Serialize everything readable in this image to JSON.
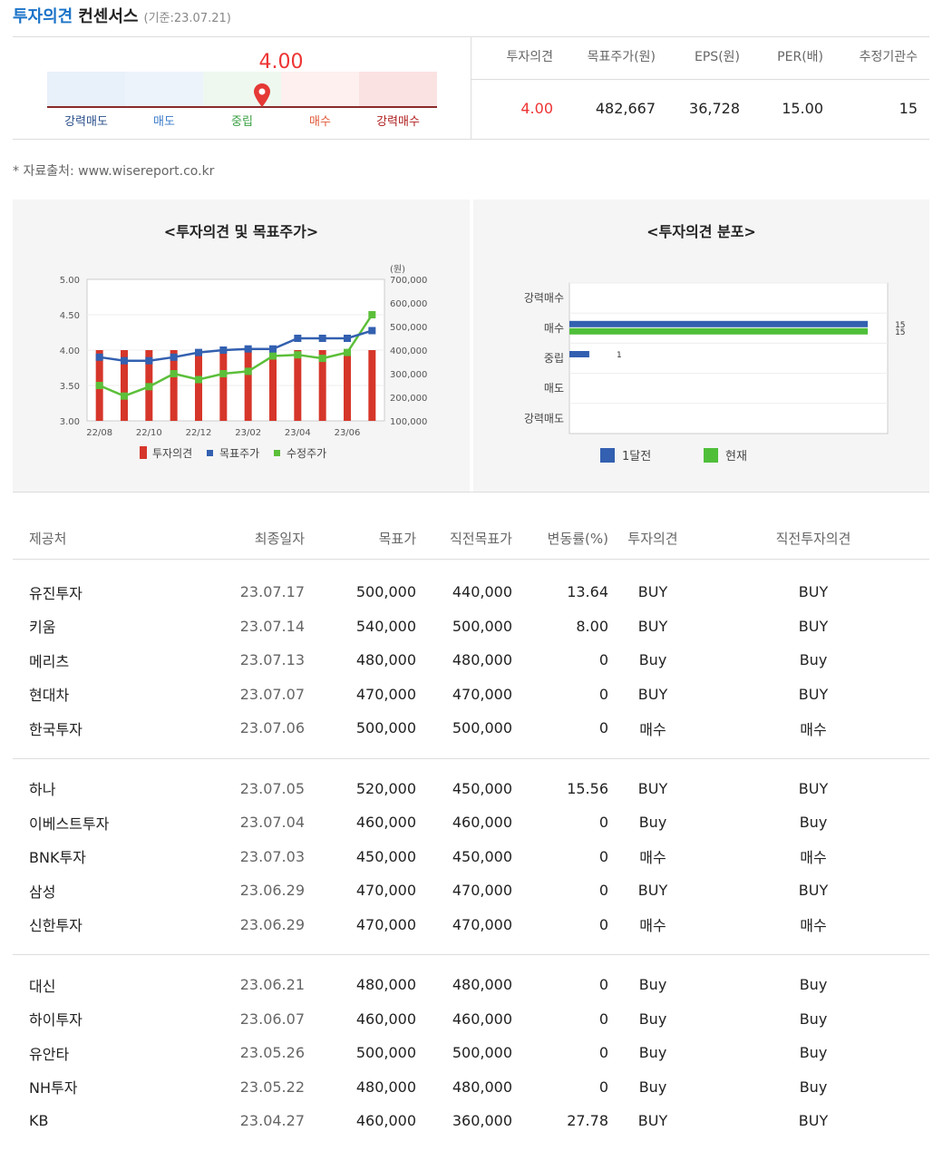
{
  "header": {
    "title_blue": "투자의견",
    "title_black": "컨센서스",
    "date_note": "(기준:23.07.21)"
  },
  "gauge": {
    "value": "4.00",
    "labels": [
      "강력매도",
      "매도",
      "중립",
      "매수",
      "강력매수"
    ],
    "label_colors": [
      "#2a4f8a",
      "#3a7bc8",
      "#3aa043",
      "#e05a3a",
      "#b02020"
    ],
    "seg_colors": [
      "#e8f0fa",
      "#edf3fb",
      "#eef8ef",
      "#fdf0ef",
      "#fbe2e2"
    ],
    "marker_color": "#e53935",
    "level": 4.0
  },
  "summary": {
    "headers": [
      "투자의견",
      "목표주가(원)",
      "EPS(원)",
      "PER(배)",
      "추정기관수"
    ],
    "values": [
      "4.00",
      "482,667",
      "36,728",
      "15.00",
      "15"
    ]
  },
  "source": "* 자료출처: www.wisereport.co.kr",
  "charts": {
    "left_title": "<투자의견 및 목표주가>",
    "right_title": "<투자의견 분포>"
  },
  "chart_data": [
    {
      "type": "bar",
      "title": "<투자의견 및 목표주가>",
      "y_left_ticks": [
        "5.00",
        "4.50",
        "4.00",
        "3.50",
        "3.00"
      ],
      "y_right_unit": "(원)",
      "y_right_ticks": [
        "700,000",
        "600,000",
        "500,000",
        "400,000",
        "300,000",
        "200,000",
        "100,000"
      ],
      "x_ticks": [
        "22/08",
        "22/10",
        "22/12",
        "23/02",
        "23/04",
        "23/06"
      ],
      "ylim_left": [
        3.0,
        5.0
      ],
      "ylim_right": [
        100000,
        700000
      ],
      "opinion": [
        4,
        4,
        4,
        4,
        4,
        4,
        4,
        4,
        4,
        4,
        4,
        4
      ],
      "target": [
        370000,
        355000,
        355000,
        370000,
        390000,
        400000,
        405000,
        405000,
        450000,
        450000,
        450000,
        482667
      ],
      "adjusted": [
        250000,
        205000,
        245000,
        300000,
        275000,
        300000,
        310000,
        375000,
        380000,
        365000,
        390000,
        550000
      ],
      "legend": [
        "투자의견",
        "목표주가",
        "수정주가"
      ],
      "colors": [
        "#d6362a",
        "#3360b0",
        "#5cbf3a"
      ]
    },
    {
      "type": "bar",
      "title": "<투자의견 분포>",
      "categories": [
        "강력매수",
        "매수",
        "중립",
        "매도",
        "강력매도"
      ],
      "series": [
        {
          "name": "1달전",
          "values": [
            0,
            15,
            1,
            0,
            0
          ]
        },
        {
          "name": "현재",
          "values": [
            0,
            15,
            0,
            0,
            0
          ]
        }
      ],
      "data_labels": [
        "15",
        "15",
        "1"
      ],
      "xlim": [
        0,
        16
      ],
      "colors": [
        "#3360b0",
        "#4fbf3a"
      ]
    }
  ],
  "table": {
    "headers": [
      "제공처",
      "최종일자",
      "목표가",
      "직전목표가",
      "변동률(%)",
      "투자의견",
      "직전투자의견"
    ],
    "groups": [
      [
        [
          "유진투자",
          "23.07.17",
          "500,000",
          "440,000",
          "13.64",
          "BUY",
          "BUY"
        ],
        [
          "키움",
          "23.07.14",
          "540,000",
          "500,000",
          "8.00",
          "BUY",
          "BUY"
        ],
        [
          "메리츠",
          "23.07.13",
          "480,000",
          "480,000",
          "0",
          "Buy",
          "Buy"
        ],
        [
          "현대차",
          "23.07.07",
          "470,000",
          "470,000",
          "0",
          "BUY",
          "BUY"
        ],
        [
          "한국투자",
          "23.07.06",
          "500,000",
          "500,000",
          "0",
          "매수",
          "매수"
        ]
      ],
      [
        [
          "하나",
          "23.07.05",
          "520,000",
          "450,000",
          "15.56",
          "BUY",
          "BUY"
        ],
        [
          "이베스트투자",
          "23.07.04",
          "460,000",
          "460,000",
          "0",
          "Buy",
          "Buy"
        ],
        [
          "BNK투자",
          "23.07.03",
          "450,000",
          "450,000",
          "0",
          "매수",
          "매수"
        ],
        [
          "삼성",
          "23.06.29",
          "470,000",
          "470,000",
          "0",
          "BUY",
          "BUY"
        ],
        [
          "신한투자",
          "23.06.29",
          "470,000",
          "470,000",
          "0",
          "매수",
          "매수"
        ]
      ],
      [
        [
          "대신",
          "23.06.21",
          "480,000",
          "480,000",
          "0",
          "Buy",
          "Buy"
        ],
        [
          "하이투자",
          "23.06.07",
          "460,000",
          "460,000",
          "0",
          "Buy",
          "Buy"
        ],
        [
          "유안타",
          "23.05.26",
          "500,000",
          "500,000",
          "0",
          "Buy",
          "Buy"
        ],
        [
          "NH투자",
          "23.05.22",
          "480,000",
          "480,000",
          "0",
          "Buy",
          "Buy"
        ],
        [
          "KB",
          "23.04.27",
          "460,000",
          "360,000",
          "27.78",
          "BUY",
          "BUY"
        ]
      ]
    ]
  }
}
